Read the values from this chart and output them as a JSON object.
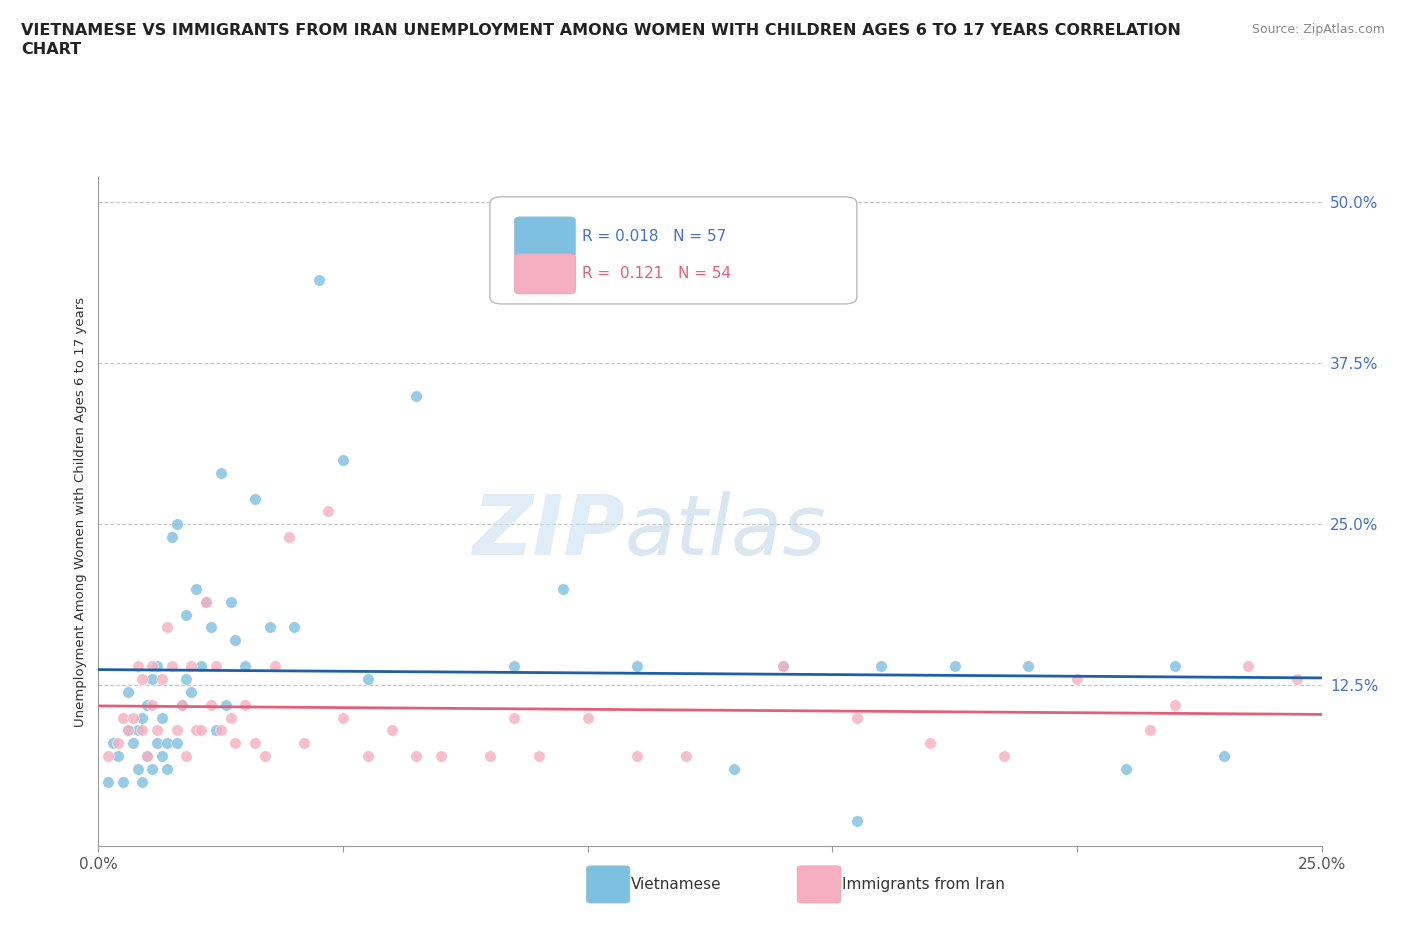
{
  "title_line1": "VIETNAMESE VS IMMIGRANTS FROM IRAN UNEMPLOYMENT AMONG WOMEN WITH CHILDREN AGES 6 TO 17 YEARS CORRELATION",
  "title_line2": "CHART",
  "source": "Source: ZipAtlas.com",
  "ylabel": "Unemployment Among Women with Children Ages 6 to 17 years",
  "xlim": [
    0.0,
    0.25
  ],
  "ylim": [
    0.0,
    0.52
  ],
  "yticks": [
    0.0,
    0.125,
    0.25,
    0.375,
    0.5
  ],
  "ytick_labels": [
    "",
    "12.5%",
    "25.0%",
    "37.5%",
    "50.0%"
  ],
  "xticks": [
    0.0,
    0.05,
    0.1,
    0.15,
    0.2,
    0.25
  ],
  "xtick_labels": [
    "0.0%",
    "",
    "",
    "",
    "",
    "25.0%"
  ],
  "grid_color": "#c8c8c8",
  "background_color": "#ffffff",
  "vietnamese_color": "#7fbfdf",
  "iran_color": "#f5afc0",
  "vietnamese_line_color": "#1f5fa6",
  "iran_line_color": "#e0607a",
  "legend_R_viet": "0.018",
  "legend_N_viet": "57",
  "legend_R_iran": "0.121",
  "legend_N_iran": "54",
  "viet_label": "Vietnamese",
  "iran_label": "Immigrants from Iran",
  "watermark_zip": "ZIP",
  "watermark_atlas": "atlas",
  "vietnamese_x": [
    0.002,
    0.003,
    0.004,
    0.005,
    0.006,
    0.006,
    0.007,
    0.008,
    0.008,
    0.009,
    0.009,
    0.01,
    0.01,
    0.011,
    0.011,
    0.012,
    0.012,
    0.013,
    0.013,
    0.014,
    0.014,
    0.015,
    0.016,
    0.016,
    0.017,
    0.018,
    0.018,
    0.019,
    0.02,
    0.021,
    0.022,
    0.023,
    0.024,
    0.025,
    0.026,
    0.027,
    0.028,
    0.03,
    0.032,
    0.035,
    0.04,
    0.045,
    0.05,
    0.055,
    0.065,
    0.085,
    0.095,
    0.11,
    0.13,
    0.14,
    0.155,
    0.16,
    0.175,
    0.19,
    0.21,
    0.22,
    0.23
  ],
  "vietnamese_y": [
    0.05,
    0.08,
    0.07,
    0.05,
    0.09,
    0.12,
    0.08,
    0.06,
    0.09,
    0.05,
    0.1,
    0.07,
    0.11,
    0.06,
    0.13,
    0.08,
    0.14,
    0.07,
    0.1,
    0.06,
    0.08,
    0.24,
    0.08,
    0.25,
    0.11,
    0.13,
    0.18,
    0.12,
    0.2,
    0.14,
    0.19,
    0.17,
    0.09,
    0.29,
    0.11,
    0.19,
    0.16,
    0.14,
    0.27,
    0.17,
    0.17,
    0.44,
    0.3,
    0.13,
    0.35,
    0.14,
    0.2,
    0.14,
    0.06,
    0.14,
    0.02,
    0.14,
    0.14,
    0.14,
    0.06,
    0.14,
    0.07
  ],
  "iran_x": [
    0.002,
    0.004,
    0.005,
    0.006,
    0.007,
    0.008,
    0.009,
    0.009,
    0.01,
    0.011,
    0.011,
    0.012,
    0.013,
    0.014,
    0.015,
    0.016,
    0.017,
    0.018,
    0.019,
    0.02,
    0.021,
    0.022,
    0.023,
    0.024,
    0.025,
    0.027,
    0.028,
    0.03,
    0.032,
    0.034,
    0.036,
    0.039,
    0.042,
    0.047,
    0.05,
    0.055,
    0.06,
    0.065,
    0.07,
    0.08,
    0.085,
    0.09,
    0.1,
    0.11,
    0.12,
    0.14,
    0.155,
    0.17,
    0.185,
    0.2,
    0.215,
    0.22,
    0.235,
    0.245
  ],
  "iran_y": [
    0.07,
    0.08,
    0.1,
    0.09,
    0.1,
    0.14,
    0.09,
    0.13,
    0.07,
    0.11,
    0.14,
    0.09,
    0.13,
    0.17,
    0.14,
    0.09,
    0.11,
    0.07,
    0.14,
    0.09,
    0.09,
    0.19,
    0.11,
    0.14,
    0.09,
    0.1,
    0.08,
    0.11,
    0.08,
    0.07,
    0.14,
    0.24,
    0.08,
    0.26,
    0.1,
    0.07,
    0.09,
    0.07,
    0.07,
    0.07,
    0.1,
    0.07,
    0.1,
    0.07,
    0.07,
    0.14,
    0.1,
    0.08,
    0.07,
    0.13,
    0.09,
    0.11,
    0.14,
    0.13
  ]
}
